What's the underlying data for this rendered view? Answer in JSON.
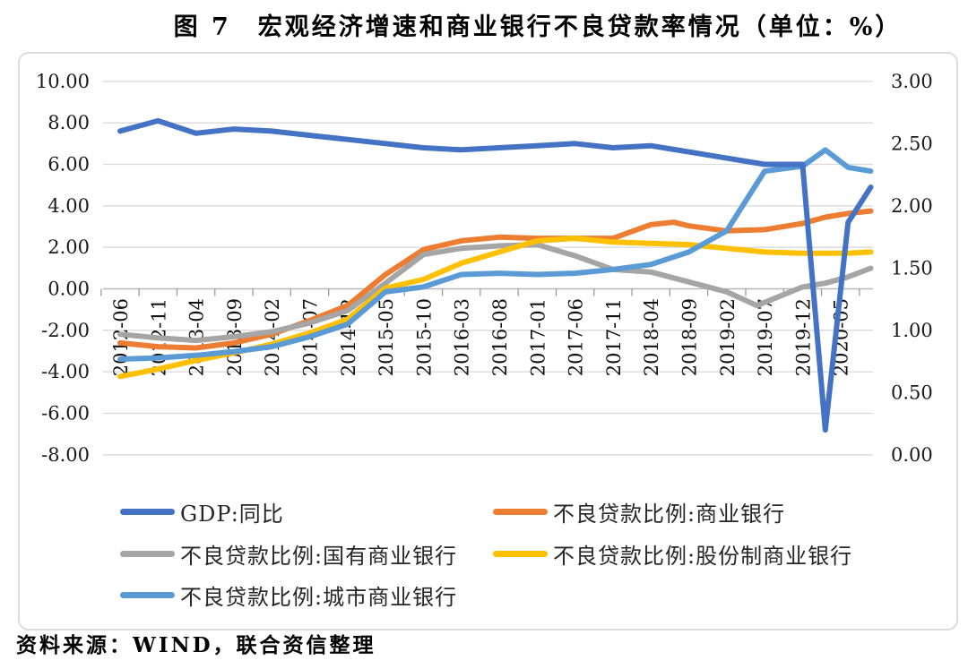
{
  "chart_data": {
    "type": "line",
    "title": "图 7　宏观经济增速和商业银行不良贷款率情况（单位：%）",
    "source": "资料来源：WIND，联合资信整理",
    "x_labels": [
      "2012-06",
      "2012-11",
      "2013-04",
      "2013-09",
      "2014-02",
      "2014-07",
      "2014-12",
      "2015-05",
      "2015-10",
      "2016-03",
      "2016-08",
      "2017-01",
      "2017-06",
      "2017-11",
      "2018-04",
      "2018-09",
      "2019-02",
      "2019-07",
      "2019-12",
      "2020-05"
    ],
    "left_axis": {
      "min": -8,
      "max": 10,
      "step": 2,
      "ticks": [
        10,
        8,
        6,
        4,
        2,
        0,
        -2,
        -4,
        -6,
        -8
      ]
    },
    "right_axis": {
      "min": 0,
      "max": 3,
      "step": 0.5,
      "ticks": [
        3,
        2.5,
        2,
        1.5,
        1,
        0.5,
        0
      ]
    },
    "layout": {
      "grid": "horizontal",
      "legend_position": "bottom-inside-two-columns",
      "x_label_rotation": -90
    },
    "series": [
      {
        "name": "GDP:同比",
        "axis": "left",
        "color": "#4472C4",
        "points": [
          [
            "2012-06",
            7.6
          ],
          [
            "2012-11",
            8.1
          ],
          [
            "2013-04",
            7.5
          ],
          [
            "2013-09",
            7.7
          ],
          [
            "2014-02",
            7.6
          ],
          [
            "2014-07",
            7.4
          ],
          [
            "2014-12",
            7.2
          ],
          [
            "2015-05",
            7.0
          ],
          [
            "2015-10",
            6.8
          ],
          [
            "2016-03",
            6.7
          ],
          [
            "2016-08",
            6.8
          ],
          [
            "2017-01",
            6.9
          ],
          [
            "2017-06",
            7.0
          ],
          [
            "2017-11",
            6.8
          ],
          [
            "2018-04",
            6.9
          ],
          [
            "2018-09",
            6.6
          ],
          [
            "2019-02",
            6.3
          ],
          [
            "2019-07",
            6.0
          ],
          [
            "2019-12",
            6.0
          ],
          [
            "2020-03",
            -6.8
          ],
          [
            "2020-06",
            3.2
          ],
          [
            "2020-09",
            4.9
          ]
        ]
      },
      {
        "name": "不良贷款比例:商业银行",
        "axis": "right",
        "color": "#ED7D31",
        "points": [
          [
            "2012-06",
            0.9
          ],
          [
            "2012-11",
            0.87
          ],
          [
            "2013-04",
            0.86
          ],
          [
            "2013-09",
            0.9
          ],
          [
            "2014-02",
            0.97
          ],
          [
            "2014-07",
            1.08
          ],
          [
            "2014-12",
            1.2
          ],
          [
            "2015-05",
            1.45
          ],
          [
            "2015-10",
            1.65
          ],
          [
            "2016-03",
            1.72
          ],
          [
            "2016-08",
            1.75
          ],
          [
            "2017-01",
            1.74
          ],
          [
            "2017-06",
            1.74
          ],
          [
            "2017-11",
            1.74
          ],
          [
            "2018-04",
            1.85
          ],
          [
            "2018-07",
            1.87
          ],
          [
            "2018-09",
            1.84
          ],
          [
            "2019-02",
            1.8
          ],
          [
            "2019-07",
            1.81
          ],
          [
            "2019-12",
            1.86
          ],
          [
            "2020-03",
            1.91
          ],
          [
            "2020-06",
            1.94
          ],
          [
            "2020-09",
            1.96
          ]
        ]
      },
      {
        "name": "不良贷款比例:国有商业银行",
        "axis": "right",
        "color": "#A5A5A5",
        "points": [
          [
            "2012-06",
            0.97
          ],
          [
            "2012-11",
            0.94
          ],
          [
            "2013-04",
            0.92
          ],
          [
            "2013-09",
            0.95
          ],
          [
            "2014-02",
            0.99
          ],
          [
            "2014-07",
            1.06
          ],
          [
            "2014-12",
            1.16
          ],
          [
            "2015-05",
            1.38
          ],
          [
            "2015-10",
            1.61
          ],
          [
            "2016-03",
            1.66
          ],
          [
            "2016-08",
            1.68
          ],
          [
            "2017-01",
            1.69
          ],
          [
            "2017-06",
            1.6
          ],
          [
            "2017-11",
            1.49
          ],
          [
            "2018-04",
            1.47
          ],
          [
            "2018-09",
            1.39
          ],
          [
            "2019-02",
            1.31
          ],
          [
            "2019-06",
            1.2
          ],
          [
            "2019-12",
            1.35
          ],
          [
            "2020-03",
            1.38
          ],
          [
            "2020-06",
            1.43
          ],
          [
            "2020-09",
            1.5
          ]
        ]
      },
      {
        "name": "不良贷款比例:股份制商业银行",
        "axis": "right",
        "color": "#FFC000",
        "points": [
          [
            "2012-06",
            0.63
          ],
          [
            "2012-11",
            0.69
          ],
          [
            "2013-04",
            0.76
          ],
          [
            "2013-09",
            0.82
          ],
          [
            "2014-02",
            0.89
          ],
          [
            "2014-07",
            0.98
          ],
          [
            "2014-12",
            1.09
          ],
          [
            "2015-05",
            1.34
          ],
          [
            "2015-10",
            1.41
          ],
          [
            "2016-03",
            1.54
          ],
          [
            "2016-08",
            1.63
          ],
          [
            "2017-01",
            1.72
          ],
          [
            "2017-06",
            1.74
          ],
          [
            "2017-11",
            1.71
          ],
          [
            "2018-04",
            1.7
          ],
          [
            "2018-09",
            1.69
          ],
          [
            "2019-02",
            1.66
          ],
          [
            "2019-07",
            1.63
          ],
          [
            "2019-12",
            1.62
          ],
          [
            "2020-06",
            1.62
          ],
          [
            "2020-09",
            1.63
          ]
        ]
      },
      {
        "name": "不良贷款比例:城市商业银行",
        "axis": "right",
        "color": "#5B9BD5",
        "points": [
          [
            "2012-06",
            0.77
          ],
          [
            "2012-11",
            0.78
          ],
          [
            "2013-04",
            0.8
          ],
          [
            "2013-09",
            0.83
          ],
          [
            "2014-02",
            0.87
          ],
          [
            "2014-07",
            0.95
          ],
          [
            "2014-12",
            1.05
          ],
          [
            "2015-05",
            1.31
          ],
          [
            "2015-10",
            1.35
          ],
          [
            "2016-03",
            1.45
          ],
          [
            "2016-08",
            1.46
          ],
          [
            "2017-01",
            1.45
          ],
          [
            "2017-06",
            1.46
          ],
          [
            "2017-11",
            1.49
          ],
          [
            "2018-04",
            1.53
          ],
          [
            "2018-09",
            1.63
          ],
          [
            "2019-02",
            1.8
          ],
          [
            "2019-07",
            2.28
          ],
          [
            "2019-12",
            2.32
          ],
          [
            "2020-03",
            2.45
          ],
          [
            "2020-06",
            2.31
          ],
          [
            "2020-09",
            2.28
          ]
        ]
      }
    ]
  }
}
